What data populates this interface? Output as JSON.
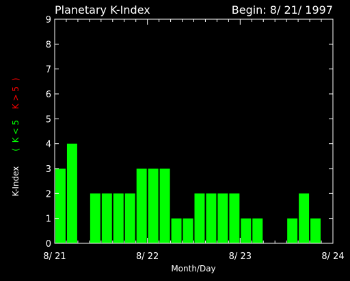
{
  "chart_data": {
    "type": "bar",
    "title": "Planetary K-Index",
    "begin_label": "Begin: 8/ 21/ 1997",
    "xlabel": "Month/Day",
    "ylabel": {
      "main": "K-Index",
      "open_paren": "(",
      "green_part": "K < 5",
      "red_part": "K > 5",
      "close_paren": ")"
    },
    "ylim": [
      0,
      9
    ],
    "y_ticks": [
      "0",
      "1",
      "2",
      "3",
      "4",
      "5",
      "6",
      "7",
      "8",
      "9"
    ],
    "x_tick_labels": [
      "8/ 21",
      "8/ 22",
      "8/ 23",
      "8/ 24"
    ],
    "bins_per_day": 8,
    "total_bins": 24,
    "values": [
      3,
      4,
      0,
      2,
      2,
      2,
      2,
      3,
      3,
      3,
      1,
      1,
      2,
      2,
      2,
      2,
      1,
      1,
      0,
      0,
      1,
      2,
      1,
      0
    ],
    "colors": {
      "background": "#000000",
      "axes": "#ffffff",
      "bar_low": "#00ff00",
      "bar_high": "#ff0000",
      "label_green": "#00ff00",
      "label_red": "#ff0000"
    }
  }
}
